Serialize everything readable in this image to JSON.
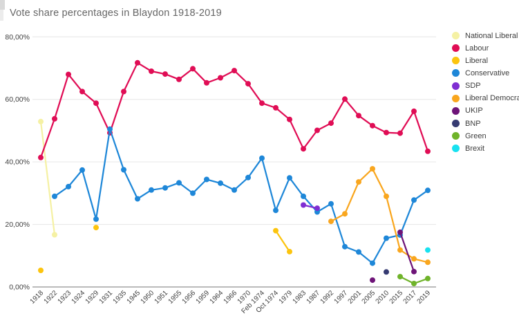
{
  "title": "Vote share percentages in Blaydon 1918-2019",
  "colors": {
    "background": "#ffffff",
    "gridline": "#e6e6e6",
    "baseline": "#757575",
    "tick_text": "#3f3f3f",
    "title_text": "#666666",
    "legend_text": "#3c3c3c"
  },
  "chart_data": {
    "type": "line",
    "title": "Vote share percentages in Blaydon 1918-2019",
    "xlabel": "",
    "ylabel": "",
    "ylim": [
      0,
      80
    ],
    "grid": true,
    "legend_position": "right",
    "point_size": 4,
    "line_width": 2.25,
    "y_ticks": [
      {
        "value": 0,
        "label": "0,00%"
      },
      {
        "value": 20,
        "label": "20,00%"
      },
      {
        "value": 40,
        "label": "40,00%"
      },
      {
        "value": 60,
        "label": "60,00%"
      },
      {
        "value": 80,
        "label": "80,00%"
      }
    ],
    "categories": [
      "1918",
      "1922",
      "1923",
      "1924",
      "1929",
      "1931",
      "1935",
      "1945",
      "1950",
      "1951",
      "1955",
      "1956",
      "1959",
      "1964",
      "1966",
      "1970",
      "Feb 1974",
      "Oct 1974",
      "1979",
      "1983",
      "1987",
      "1992",
      "1997",
      "2001",
      "2005",
      "2010",
      "2015",
      "2017",
      "2019"
    ],
    "series": [
      {
        "name": "National Liberal",
        "color": "#F5F1A4",
        "values": [
          52.9,
          16.7,
          null,
          null,
          null,
          null,
          null,
          null,
          null,
          null,
          null,
          null,
          null,
          null,
          null,
          null,
          null,
          null,
          null,
          null,
          null,
          null,
          null,
          null,
          null,
          null,
          null,
          null,
          null
        ]
      },
      {
        "name": "Labour",
        "color": "#E00D55",
        "values": [
          41.4,
          53.8,
          68.0,
          62.5,
          58.8,
          49.3,
          62.5,
          71.7,
          69.0,
          68.1,
          66.4,
          69.8,
          65.3,
          66.9,
          69.2,
          65.0,
          58.8,
          57.3,
          53.6,
          44.2,
          50.1,
          52.4,
          60.1,
          54.8,
          51.6,
          49.4,
          49.2,
          56.2,
          43.4
        ]
      },
      {
        "name": "Liberal",
        "color": "#FCC40E",
        "values": [
          5.3,
          null,
          null,
          null,
          19.0,
          null,
          null,
          null,
          null,
          null,
          null,
          null,
          null,
          null,
          null,
          null,
          null,
          18.0,
          11.3,
          null,
          null,
          null,
          null,
          null,
          null,
          null,
          null,
          null,
          null
        ]
      },
      {
        "name": "Conservative",
        "color": "#1E87D8",
        "values": [
          null,
          29.0,
          32.1,
          37.4,
          21.7,
          50.5,
          37.5,
          28.2,
          31.0,
          31.7,
          33.3,
          30.0,
          34.4,
          33.2,
          31.0,
          35.0,
          41.2,
          24.5,
          34.9,
          29.0,
          24.0,
          26.6,
          12.9,
          11.2,
          7.6,
          15.6,
          16.6,
          27.8,
          30.9
        ]
      },
      {
        "name": "SDP",
        "color": "#7F2ED2",
        "values": [
          null,
          null,
          null,
          null,
          null,
          null,
          null,
          null,
          null,
          null,
          null,
          null,
          null,
          null,
          null,
          null,
          null,
          null,
          null,
          26.2,
          25.2,
          null,
          null,
          null,
          null,
          null,
          null,
          null,
          null
        ]
      },
      {
        "name": "Liberal Democrats",
        "color": "#F9A61E",
        "values": [
          null,
          null,
          null,
          null,
          null,
          null,
          null,
          null,
          null,
          null,
          null,
          null,
          null,
          null,
          null,
          null,
          null,
          null,
          null,
          null,
          null,
          21.0,
          23.4,
          33.6,
          37.8,
          29.0,
          11.8,
          9.0,
          7.9
        ]
      },
      {
        "name": "UKIP",
        "color": "#6E1478",
        "values": [
          null,
          null,
          null,
          null,
          null,
          null,
          null,
          null,
          null,
          null,
          null,
          null,
          null,
          null,
          null,
          null,
          null,
          null,
          null,
          null,
          null,
          null,
          null,
          null,
          2.2,
          null,
          17.5,
          4.9,
          null
        ]
      },
      {
        "name": "BNP",
        "color": "#363B72",
        "values": [
          null,
          null,
          null,
          null,
          null,
          null,
          null,
          null,
          null,
          null,
          null,
          null,
          null,
          null,
          null,
          null,
          null,
          null,
          null,
          null,
          null,
          null,
          null,
          null,
          null,
          4.8,
          null,
          null,
          null
        ]
      },
      {
        "name": "Green",
        "color": "#6FB32A",
        "values": [
          null,
          null,
          null,
          null,
          null,
          null,
          null,
          null,
          null,
          null,
          null,
          null,
          null,
          null,
          null,
          null,
          null,
          null,
          null,
          null,
          null,
          null,
          null,
          null,
          null,
          null,
          3.3,
          1.1,
          2.7
        ]
      },
      {
        "name": "Brexit",
        "color": "#18E1F0",
        "values": [
          null,
          null,
          null,
          null,
          null,
          null,
          null,
          null,
          null,
          null,
          null,
          null,
          null,
          null,
          null,
          null,
          null,
          null,
          null,
          null,
          null,
          null,
          null,
          null,
          null,
          null,
          null,
          null,
          11.8
        ]
      }
    ]
  }
}
